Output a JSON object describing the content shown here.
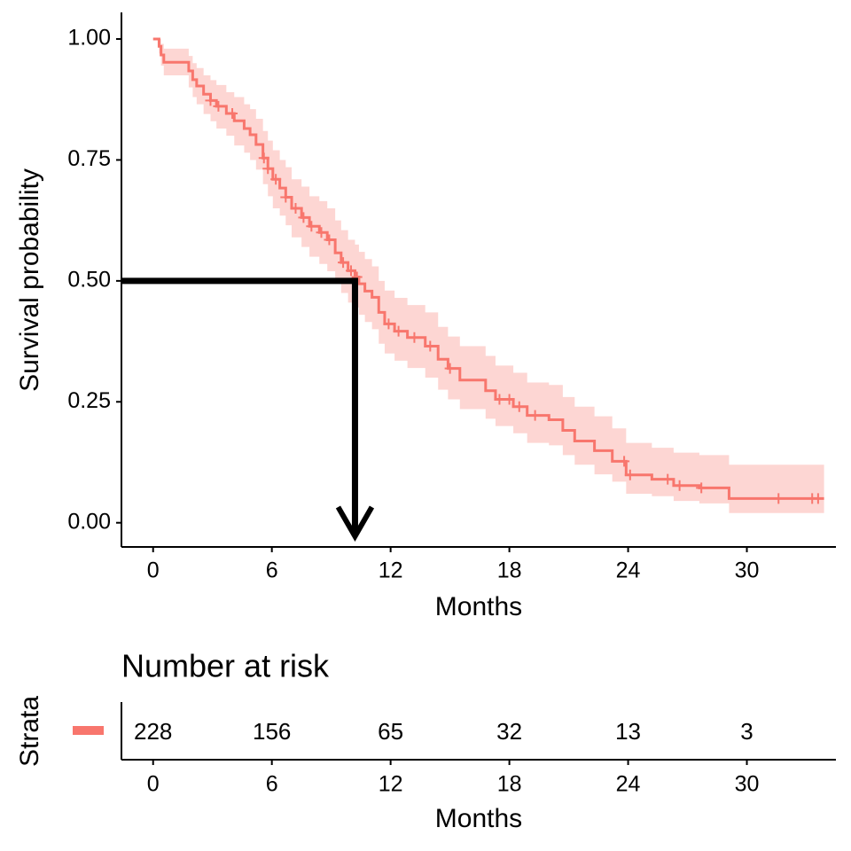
{
  "chart_data": [
    {
      "type": "survival",
      "xlabel": "Months",
      "ylabel": "Survival probability",
      "x": [
        0,
        0.3,
        0.4,
        0.54,
        1.8,
        2.0,
        2.2,
        2.55,
        2.9,
        3.2,
        3.7,
        4.1,
        4.6,
        4.9,
        5.2,
        5.55,
        5.8,
        6.05,
        6.4,
        6.7,
        7.0,
        7.5,
        7.9,
        8.4,
        8.8,
        9.2,
        9.5,
        9.85,
        10.2,
        10.4,
        10.7,
        11.06,
        11.4,
        11.7,
        12.2,
        12.85,
        13.75,
        14.4,
        14.9,
        15.5,
        16.8,
        17.3,
        18.2,
        18.9,
        20.0,
        20.7,
        21.3,
        22.3,
        23.2,
        23.9,
        25.2,
        26.3,
        27.6,
        29.1,
        33.9
      ],
      "series": [
        {
          "color": "#F8766D",
          "values": [
            1,
            0.985,
            0.967,
            0.952,
            0.934,
            0.916,
            0.903,
            0.886,
            0.873,
            0.861,
            0.846,
            0.831,
            0.815,
            0.802,
            0.782,
            0.754,
            0.732,
            0.71,
            0.692,
            0.673,
            0.65,
            0.631,
            0.613,
            0.6,
            0.585,
            0.558,
            0.538,
            0.521,
            0.508,
            0.494,
            0.479,
            0.466,
            0.435,
            0.411,
            0.396,
            0.383,
            0.365,
            0.338,
            0.319,
            0.295,
            0.273,
            0.255,
            0.24,
            0.222,
            0.213,
            0.191,
            0.169,
            0.149,
            0.127,
            0.099,
            0.09,
            0.077,
            0.072,
            0.05,
            0.05
          ],
          "upper": [
            1,
            1,
            0.99,
            0.98,
            0.965,
            0.95,
            0.94,
            0.925,
            0.915,
            0.905,
            0.89,
            0.88,
            0.865,
            0.855,
            0.835,
            0.81,
            0.79,
            0.77,
            0.75,
            0.735,
            0.71,
            0.695,
            0.675,
            0.665,
            0.65,
            0.625,
            0.605,
            0.585,
            0.575,
            0.56,
            0.545,
            0.53,
            0.5,
            0.48,
            0.465,
            0.45,
            0.435,
            0.405,
            0.385,
            0.365,
            0.345,
            0.325,
            0.31,
            0.29,
            0.285,
            0.26,
            0.24,
            0.22,
            0.195,
            0.165,
            0.155,
            0.145,
            0.14,
            0.12,
            0.12
          ],
          "lower": [
            1,
            0.97,
            0.945,
            0.925,
            0.9,
            0.88,
            0.865,
            0.845,
            0.83,
            0.815,
            0.8,
            0.78,
            0.765,
            0.75,
            0.73,
            0.7,
            0.675,
            0.65,
            0.635,
            0.615,
            0.59,
            0.57,
            0.55,
            0.535,
            0.52,
            0.495,
            0.475,
            0.455,
            0.445,
            0.43,
            0.415,
            0.4,
            0.37,
            0.35,
            0.335,
            0.32,
            0.3,
            0.275,
            0.255,
            0.235,
            0.215,
            0.2,
            0.185,
            0.165,
            0.16,
            0.14,
            0.12,
            0.1,
            0.085,
            0.06,
            0.055,
            0.045,
            0.04,
            0.02,
            0.02
          ]
        }
      ],
      "censor": {
        "x": [
          2.9,
          3.3,
          4.0,
          5.6,
          5.8,
          6.2,
          6.7,
          7.2,
          7.6,
          8.0,
          8.5,
          8.9,
          9.6,
          10.0,
          10.3,
          11.9,
          12.4,
          13.2,
          14.0,
          15.0,
          17.5,
          18.0,
          18.5,
          19.3,
          23.8,
          24.1,
          26.0,
          26.6,
          27.7,
          31.6,
          33.3,
          33.6
        ],
        "y": [
          0.873,
          0.861,
          0.846,
          0.754,
          0.732,
          0.71,
          0.673,
          0.65,
          0.631,
          0.613,
          0.6,
          0.585,
          0.538,
          0.521,
          0.508,
          0.411,
          0.396,
          0.383,
          0.365,
          0.319,
          0.255,
          0.255,
          0.24,
          0.222,
          0.127,
          0.099,
          0.09,
          0.077,
          0.072,
          0.05,
          0.05,
          0.05
        ]
      },
      "median": {
        "time": 10.2,
        "survival": 0.5
      },
      "xlim": [
        -1.6,
        34.5
      ],
      "xticks": [
        0,
        6,
        12,
        18,
        24,
        30
      ],
      "ylim": [
        -0.05,
        1.055
      ],
      "yticks": [
        {
          "value": 0,
          "label": "0.00"
        },
        0.25,
        {
          "value": 0.5,
          "label": "0.50"
        },
        0.75,
        {
          "value": 1,
          "label": "1.00"
        }
      ]
    },
    {
      "type": "risk-table",
      "title": "Number at risk",
      "ylabel": "Strata",
      "xlabel": "Months",
      "color": "#F8766D",
      "x": [
        0,
        6,
        12,
        18,
        24,
        30
      ],
      "values": [
        228,
        156,
        65,
        32,
        13,
        3
      ],
      "xlim": [
        -1.6,
        34.5
      ],
      "xticks": [
        0,
        6,
        12,
        18,
        24,
        30
      ]
    }
  ]
}
